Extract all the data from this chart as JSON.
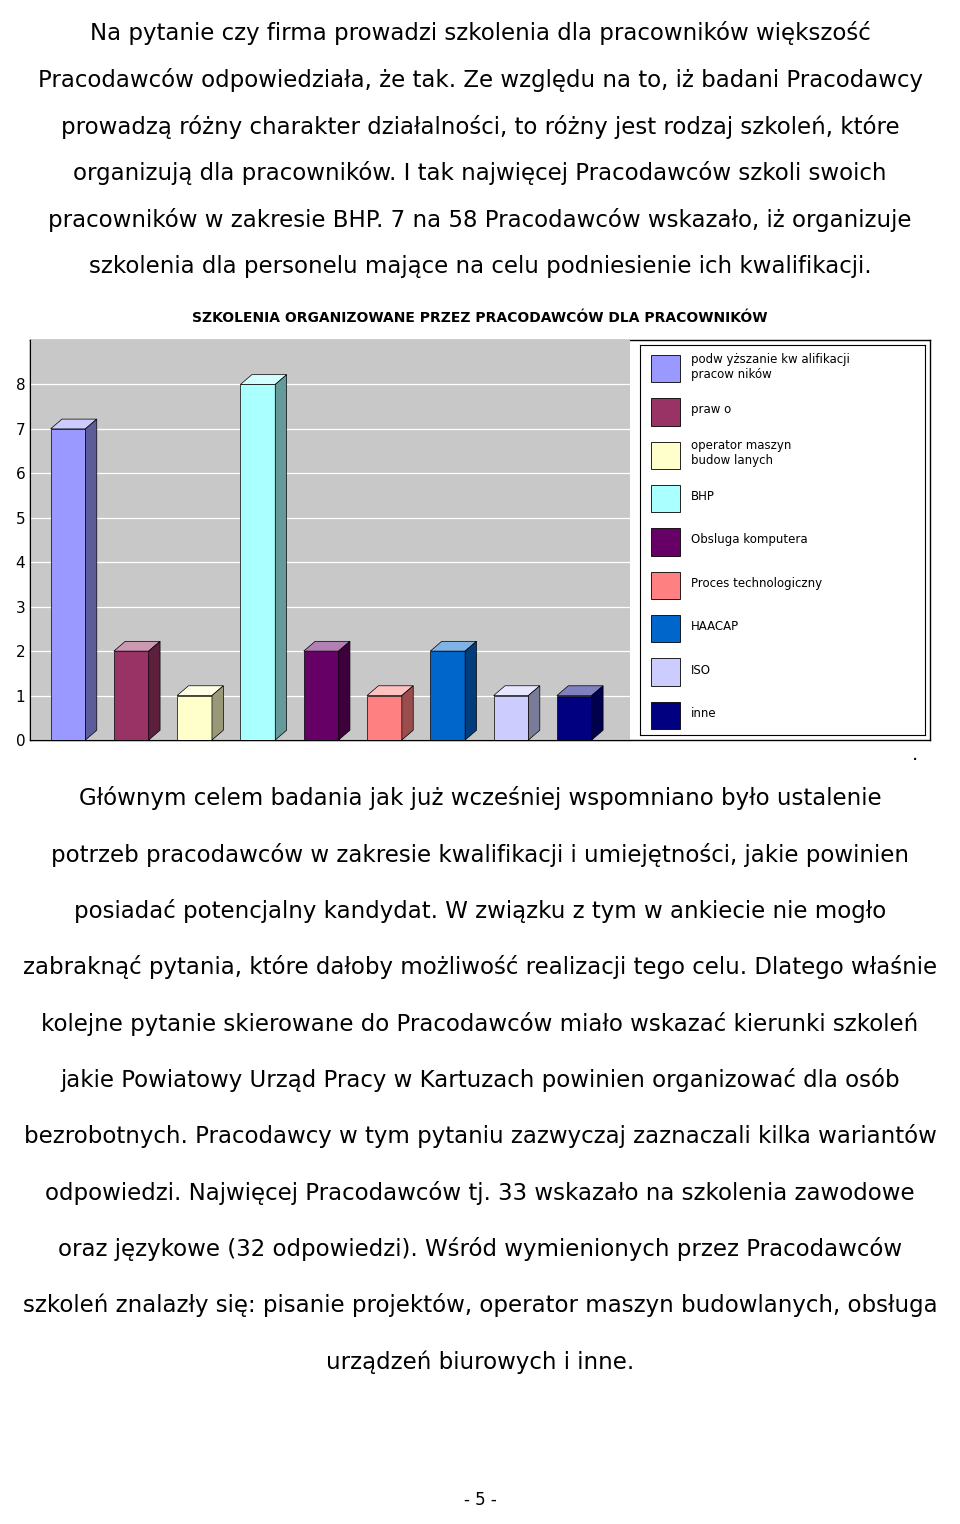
{
  "title": "Szkolenia organizowane przez pracodawców dla pracowników",
  "values": [
    7,
    2,
    1,
    8,
    2,
    1,
    2,
    1,
    1
  ],
  "bar_colors": [
    "#9999FF",
    "#993366",
    "#FFFFCC",
    "#AAFFFF",
    "#660066",
    "#FF8080",
    "#0066CC",
    "#CCCCFF",
    "#000080"
  ],
  "legend_labels": [
    "podw yższanie kw alifikacji\npracow ników",
    "praw o",
    "operator maszyn\nbudow lanych",
    "BHP",
    "Obsluga komputera",
    "Proces technologiczny",
    "HAACAP",
    "ISO",
    "inne"
  ],
  "legend_colors": [
    "#9999FF",
    "#993366",
    "#FFFFCC",
    "#AAFFFF",
    "#660066",
    "#FF8080",
    "#0066CC",
    "#CCCCFF",
    "#000080"
  ],
  "ylim": [
    0,
    9
  ],
  "yticks": [
    0,
    1,
    2,
    3,
    4,
    5,
    6,
    7,
    8
  ],
  "background_color": "#FFFFFF",
  "chart_bg": "#C8C8C8",
  "title_fontsize": 10,
  "top_text": "Na pytanie czy firma prowadzi szkolenia dla pracowników większość\nPracodawców odpowiedziała, że tak. Ze względu na to, iż badani Pracodawcy\nprowadzą różny charakter działalności, to różny jest rodzaj szkoleń, które\norganizują dla pracowników. I tak najwięcej Pracodawców szkoli swoich\npracowników w zakresie BHP. 7 na 58 Pracodawców wskazało, iż organizuje\nszkolenia dla personelu mające na celu podniesienie ich kwalifikacji.",
  "bottom_text": "Głównym celem badania jak już wcześniej wspomniano było ustalenie\npotrzeb pracodawców w zakresie kwalifikacji i umiejętności, jakie powinien\nposiadać potencjalny kandydat. W związku z tym w ankiecie nie mogło\nzabraknąć pytania, które dałoby możliwość realizacji tego celu. Dlatego właśnie\nkolejne pytanie skierowane do Pracodawców miało wskazać kierunki szkoleń\njakie Powiatowy Urząd Pracy w Kartuzach powinien organizować dla osób\nbezrobotnych. Pracodawcy w tym pytaniu zazwyczaj zaznaczali kilka wariantów\nodpowiedzi. Najwięcej Pracodawców tj. 33 wskazało na szkolenia zawodowe\noraz językowe (32 odpowiedzi). Wśród wymienionych przez Pracodawców\nszkoleń znalazły się: pisanie projektów, operator maszyn budowlanych, obsługa\nurządzeń biurowych i inne.",
  "page_number": "- 5 -"
}
